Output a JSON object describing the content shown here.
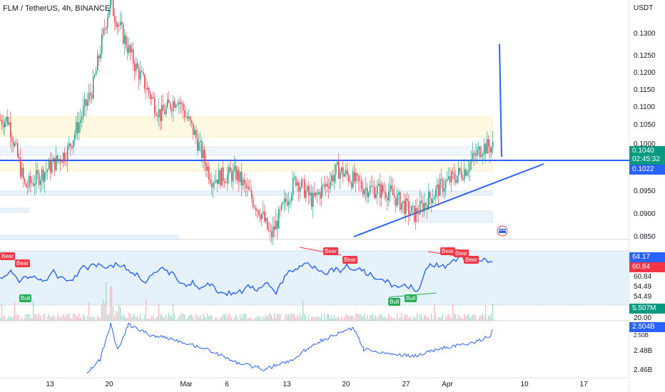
{
  "header": {
    "title": "FLM / TetherUS, 4h, BINANCE",
    "currency": "USDT"
  },
  "price_axis": [
    "0.1300",
    "0.1250",
    "0.1200",
    "0.1150",
    "0.1100",
    "0.1050",
    "0.1000",
    "0.0950",
    "0.0900",
    "0.0850"
  ],
  "price_tags": {
    "last_price": "0.1040",
    "countdown": "02:45:32",
    "line_level": "0.1022",
    "last_color": "#089981",
    "line_color": "#2962ff"
  },
  "rsi_axis": {
    "tag1": "64.17",
    "tag2": "60.84",
    "labels": [
      "60.84",
      "54.49",
      "54.49"
    ],
    "tag1_color": "#2962ff",
    "tag2_color": "#f23645"
  },
  "volume_axis": {
    "tag": "5.507M",
    "label": "20.00",
    "tag_color": "#089981"
  },
  "obv_axis": {
    "tag": "2.504B",
    "labels": [
      "2.50B",
      "2.48B",
      "2.46B"
    ],
    "tag_color": "#2962ff"
  },
  "time_axis": [
    "13",
    "20",
    "Mar",
    "6",
    "13",
    "20",
    "27",
    "Apr",
    "10",
    "17"
  ],
  "signals": {
    "bear": "Bear",
    "bull": "Bull"
  },
  "chart_data": {
    "type": "candlestick",
    "symbol": "FLM / TetherUS",
    "interval": "4h",
    "exchange": "BINANCE",
    "ylim": [
      0.0835,
      0.1365
    ],
    "last_price": 0.104,
    "horizontal_level": 0.1022,
    "swing_points": [
      {
        "date": "Feb 8",
        "price": 0.11
      },
      {
        "date": "Feb 10",
        "price": 0.095
      },
      {
        "date": "Feb 12",
        "price": 0.098
      },
      {
        "date": "Feb 15",
        "price": 0.103
      },
      {
        "date": "Feb 18",
        "price": 0.117
      },
      {
        "date": "Feb 20",
        "price": 0.136
      },
      {
        "date": "Feb 23",
        "price": 0.122
      },
      {
        "date": "Feb 26",
        "price": 0.111
      },
      {
        "date": "Feb 28",
        "price": 0.115
      },
      {
        "date": "Mar 2",
        "price": 0.107
      },
      {
        "date": "Mar 4",
        "price": 0.097
      },
      {
        "date": "Mar 7",
        "price": 0.098
      },
      {
        "date": "Mar 10",
        "price": 0.089
      },
      {
        "date": "Mar 11",
        "price": 0.084
      },
      {
        "date": "Mar 14",
        "price": 0.097
      },
      {
        "date": "Mar 16",
        "price": 0.092
      },
      {
        "date": "Mar 19",
        "price": 0.099
      },
      {
        "date": "Mar 22",
        "price": 0.095
      },
      {
        "date": "Mar 25",
        "price": 0.094
      },
      {
        "date": "Mar 28",
        "price": 0.089
      },
      {
        "date": "Mar 31",
        "price": 0.095
      },
      {
        "date": "Apr 3",
        "price": 0.099
      },
      {
        "date": "Apr 5",
        "price": 0.104
      }
    ],
    "rsi_tags": [
      64.17,
      60.84
    ],
    "volume_tag": "5.507M",
    "obv_tag": "2.504B"
  }
}
